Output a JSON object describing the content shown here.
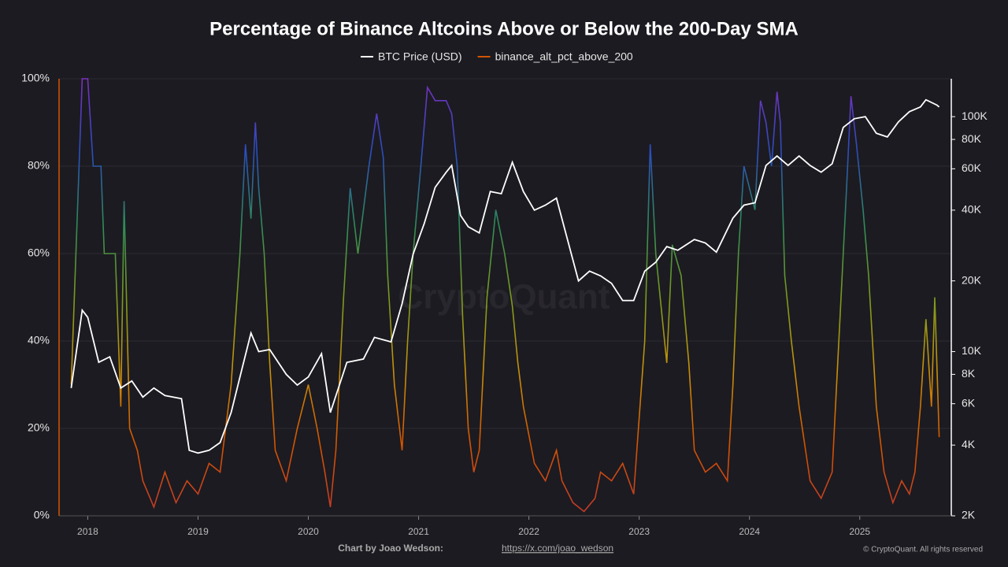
{
  "chart_data": {
    "type": "line",
    "title": "Percentage of Binance Altcoins Above or Below the 200-Day SMA",
    "xlim": [
      2017.74,
      2025.83
    ],
    "xticks": [
      2018,
      2019,
      2020,
      2021,
      2022,
      2023,
      2024,
      2025
    ],
    "ylim": [
      0,
      100
    ],
    "yticks": [
      {
        "value": 0,
        "label": "0%"
      },
      {
        "value": 20,
        "label": "20%"
      },
      {
        "value": 40,
        "label": "40%"
      },
      {
        "value": 60,
        "label": "60%"
      },
      {
        "value": 80,
        "label": "80%"
      },
      {
        "value": 100,
        "label": "100%"
      }
    ],
    "y2lim": [
      2000,
      145000
    ],
    "y2_scale": "log",
    "y2ticks": [
      {
        "value": 2000,
        "label": "2K"
      },
      {
        "value": 4000,
        "label": "4K"
      },
      {
        "value": 6000,
        "label": "6K"
      },
      {
        "value": 8000,
        "label": "8K"
      },
      {
        "value": 10000,
        "label": "10K"
      },
      {
        "value": 20000,
        "label": "20K"
      },
      {
        "value": 40000,
        "label": "40K"
      },
      {
        "value": 60000,
        "label": "60K"
      },
      {
        "value": 80000,
        "label": "80K"
      },
      {
        "value": 100000,
        "label": "100K"
      }
    ],
    "grid": true,
    "color_scale": [
      "#c0392b",
      "#d35400",
      "#c8900a",
      "#7a9a1e",
      "#2e8b57",
      "#2a4dbf",
      "#7b2fbf"
    ],
    "series": [
      {
        "name": "BTC Price (USD)",
        "color": "#ffffff",
        "axis": "y2",
        "x": [
          2017.85,
          2017.95,
          2018.0,
          2018.1,
          2018.2,
          2018.3,
          2018.4,
          2018.5,
          2018.6,
          2018.7,
          2018.85,
          2018.92,
          2019.0,
          2019.1,
          2019.2,
          2019.3,
          2019.4,
          2019.48,
          2019.55,
          2019.65,
          2019.8,
          2019.9,
          2020.0,
          2020.12,
          2020.2,
          2020.35,
          2020.5,
          2020.6,
          2020.75,
          2020.85,
          2020.95,
          2021.05,
          2021.15,
          2021.25,
          2021.3,
          2021.38,
          2021.45,
          2021.55,
          2021.65,
          2021.75,
          2021.85,
          2021.95,
          2022.05,
          2022.15,
          2022.25,
          2022.35,
          2022.45,
          2022.55,
          2022.65,
          2022.75,
          2022.85,
          2022.95,
          2023.05,
          2023.15,
          2023.25,
          2023.35,
          2023.5,
          2023.6,
          2023.7,
          2023.85,
          2023.95,
          2024.05,
          2024.15,
          2024.25,
          2024.35,
          2024.45,
          2024.55,
          2024.65,
          2024.75,
          2024.85,
          2024.95,
          2025.05,
          2025.15,
          2025.25,
          2025.35,
          2025.45,
          2025.55,
          2025.6,
          2025.7,
          2025.72
        ],
        "values": [
          7000,
          15000,
          14000,
          9000,
          9500,
          7000,
          7500,
          6400,
          7000,
          6500,
          6300,
          3800,
          3700,
          3800,
          4100,
          5500,
          8500,
          12000,
          10000,
          10200,
          8000,
          7200,
          7800,
          9800,
          5500,
          9000,
          9300,
          11500,
          11000,
          16000,
          26000,
          35000,
          50000,
          58000,
          62000,
          38000,
          34000,
          32000,
          48000,
          47000,
          64000,
          48000,
          40000,
          42000,
          45000,
          30000,
          20000,
          22000,
          21000,
          19500,
          16500,
          16500,
          22000,
          24000,
          28000,
          27000,
          30000,
          29000,
          26500,
          37000,
          42000,
          43000,
          62000,
          68000,
          62000,
          68000,
          62000,
          58000,
          63000,
          90000,
          98000,
          100000,
          85000,
          82000,
          95000,
          105000,
          110000,
          118000,
          112000,
          110000
        ]
      },
      {
        "name": "binance_alt_pct_above_200",
        "color": "#d35400",
        "x": [
          2017.85,
          2017.9,
          2017.95,
          2018.0,
          2018.05,
          2018.12,
          2018.15,
          2018.25,
          2018.3,
          2018.33,
          2018.38,
          2018.45,
          2018.5,
          2018.6,
          2018.7,
          2018.8,
          2018.9,
          2019.0,
          2019.1,
          2019.2,
          2019.3,
          2019.38,
          2019.43,
          2019.48,
          2019.52,
          2019.55,
          2019.6,
          2019.65,
          2019.7,
          2019.8,
          2019.9,
          2020.0,
          2020.08,
          2020.15,
          2020.2,
          2020.25,
          2020.32,
          2020.38,
          2020.45,
          2020.55,
          2020.62,
          2020.68,
          2020.72,
          2020.78,
          2020.85,
          2020.9,
          2020.95,
          2021.02,
          2021.08,
          2021.15,
          2021.25,
          2021.3,
          2021.35,
          2021.4,
          2021.45,
          2021.5,
          2021.55,
          2021.62,
          2021.7,
          2021.78,
          2021.85,
          2021.9,
          2021.95,
          2022.05,
          2022.15,
          2022.25,
          2022.3,
          2022.4,
          2022.5,
          2022.6,
          2022.65,
          2022.75,
          2022.85,
          2022.95,
          2023.05,
          2023.1,
          2023.15,
          2023.25,
          2023.3,
          2023.38,
          2023.45,
          2023.5,
          2023.6,
          2023.7,
          2023.8,
          2023.85,
          2023.9,
          2023.95,
          2024.05,
          2024.1,
          2024.15,
          2024.2,
          2024.25,
          2024.28,
          2024.32,
          2024.38,
          2024.45,
          2024.55,
          2024.65,
          2024.75,
          2024.82,
          2024.88,
          2024.92,
          2024.97,
          2025.03,
          2025.08,
          2025.15,
          2025.22,
          2025.3,
          2025.38,
          2025.45,
          2025.5,
          2025.55,
          2025.6,
          2025.65,
          2025.68,
          2025.72
        ],
        "values": [
          30,
          65,
          100,
          100,
          80,
          80,
          60,
          60,
          25,
          72,
          20,
          15,
          8,
          2,
          10,
          3,
          8,
          5,
          12,
          10,
          30,
          60,
          85,
          68,
          90,
          75,
          60,
          35,
          15,
          8,
          20,
          30,
          20,
          10,
          2,
          15,
          50,
          75,
          60,
          80,
          92,
          82,
          55,
          30,
          15,
          40,
          60,
          80,
          98,
          95,
          95,
          92,
          80,
          45,
          20,
          10,
          15,
          50,
          70,
          60,
          48,
          35,
          25,
          12,
          8,
          15,
          8,
          3,
          1,
          4,
          10,
          8,
          12,
          5,
          40,
          85,
          60,
          35,
          62,
          55,
          35,
          15,
          10,
          12,
          8,
          30,
          60,
          80,
          70,
          95,
          90,
          80,
          97,
          90,
          55,
          40,
          25,
          8,
          4,
          10,
          45,
          75,
          96,
          85,
          70,
          55,
          25,
          10,
          3,
          8,
          5,
          10,
          25,
          45,
          25,
          50,
          18
        ]
      }
    ]
  },
  "watermark": "CryptoQuant",
  "footer": {
    "credit": "Chart by Joao Wedson:",
    "link": "https://x.com/joao_wedson",
    "copyright": "© CryptoQuant. All rights reserved"
  }
}
